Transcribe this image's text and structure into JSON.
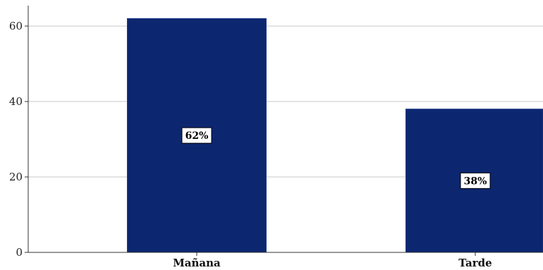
{
  "chart_data": {
    "type": "bar",
    "categories": [
      "Mañana",
      "Tarde"
    ],
    "values": [
      62,
      38
    ],
    "data_labels": [
      "62%",
      "38%"
    ],
    "title": "",
    "xlabel": "",
    "ylabel": "",
    "ylim": [
      0,
      65
    ],
    "yticks": [
      0,
      20,
      40,
      60
    ],
    "ytick_labels": [
      "0",
      "20",
      "40",
      "60"
    ],
    "grid": true,
    "bar_color": "#0c2670",
    "grid_color": "#c8c8c8"
  }
}
